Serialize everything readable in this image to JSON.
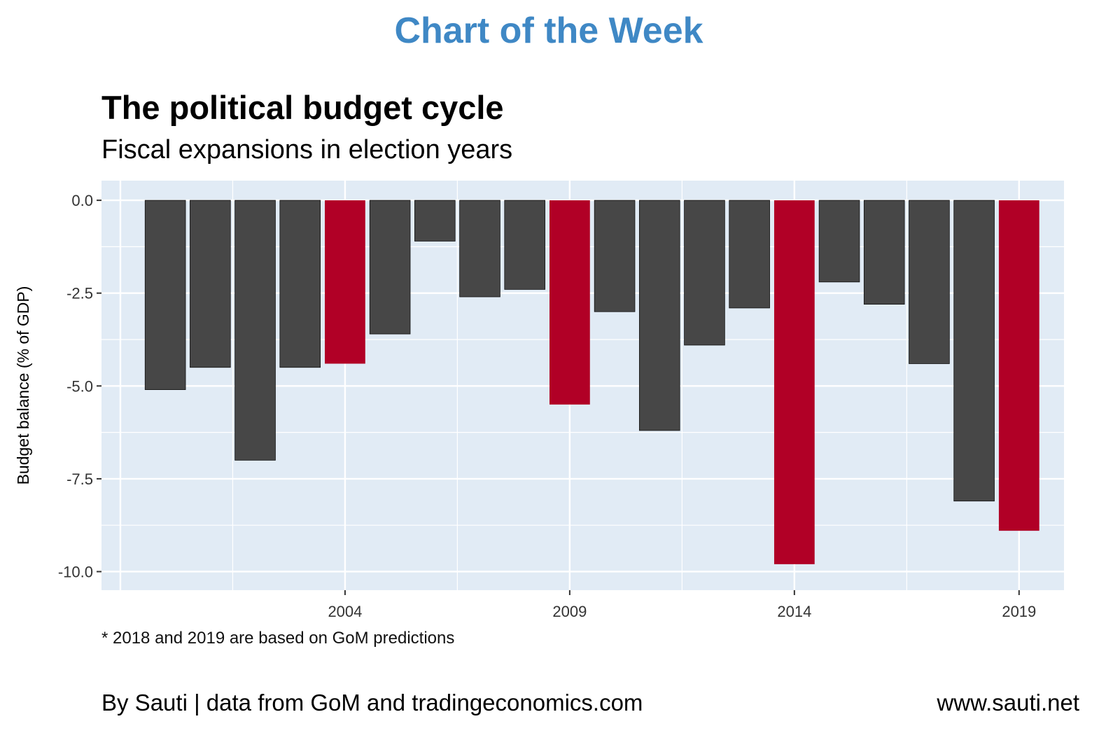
{
  "header": "Chart of the Week",
  "footer": {
    "note": "* 2018 and 2019 are based on GoM predictions",
    "credit": "By Sauti | data from GoM and tradingeconomics.com",
    "site": "www.sauti.net"
  },
  "colors": {
    "normal": "#474747",
    "election": "#b10026",
    "panel": "#e1ebf5",
    "header": "#3f88c5"
  },
  "chart_data": {
    "type": "bar",
    "title": "The political budget cycle",
    "subtitle": "Fiscal expansions in election years",
    "xlabel": "",
    "ylabel": "Budget balance (% of GDP)",
    "x": [
      2000,
      2001,
      2002,
      2003,
      2004,
      2005,
      2006,
      2007,
      2008,
      2009,
      2010,
      2011,
      2012,
      2013,
      2014,
      2015,
      2016,
      2017,
      2018,
      2019
    ],
    "values": [
      -5.1,
      -4.5,
      -7.0,
      -4.5,
      -4.4,
      -3.6,
      -1.1,
      -2.6,
      -2.4,
      -5.5,
      -3.0,
      -6.2,
      -3.9,
      -2.9,
      -9.8,
      -2.2,
      -2.8,
      -4.4,
      -8.1,
      -8.9
    ],
    "election_years": [
      2004,
      2009,
      2014,
      2019
    ],
    "xticks": [
      2004,
      2009,
      2014,
      2019
    ],
    "xtick_labels": [
      "2004",
      "2009",
      "2014",
      "2019"
    ],
    "yticks": [
      0,
      -2.5,
      -5,
      -7.5,
      -10
    ],
    "ytick_labels": [
      "0.0",
      "-2.5",
      "-5.0",
      "-7.5",
      "-10.0"
    ],
    "xlim": [
      1998.58,
      2020.0
    ],
    "ylim": [
      -10.5,
      0.53
    ],
    "grid": true,
    "legend": "none"
  }
}
